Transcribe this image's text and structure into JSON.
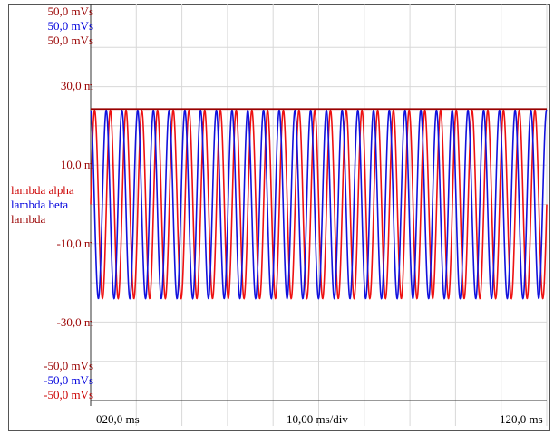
{
  "scale_labels": {
    "top": [
      "50,0 mVs",
      "50,0 mVs",
      "50,0 mVs"
    ],
    "bottom": [
      "-50,0 mVs",
      "-50,0 mVs",
      "-50,0 mVs"
    ]
  },
  "legend": [
    "lambda  alpha",
    "lambda  beta",
    "lambda"
  ],
  "x_labels": {
    "left": "020,0 ms",
    "center": "10,00 ms/div",
    "right": "120,0 ms"
  },
  "colors": {
    "alpha": "#ee1111",
    "beta": "#1111dd",
    "lambda": "#990000",
    "grid": "#d8d8d8"
  },
  "chart_data": {
    "type": "line",
    "title": "",
    "xlabel": "10,00 ms/div",
    "ylabel": "",
    "xlim": [
      20,
      120
    ],
    "ylim": [
      -50,
      50
    ],
    "y_ticks": [
      {
        "value": 30,
        "label": "30,0 m"
      },
      {
        "value": 10,
        "label": "10,0 m"
      },
      {
        "value": -10,
        "label": "-10,0 m"
      },
      {
        "value": -30,
        "label": "-30,0 m"
      }
    ],
    "x_ticks": [
      {
        "value": 20,
        "label": "020,0 ms"
      },
      {
        "value": 120,
        "label": "120,0 ms"
      }
    ],
    "grid": true,
    "series": [
      {
        "name": "lambda  alpha",
        "waveform": "sine",
        "amplitude": 24,
        "offset": 0,
        "cycles": 29,
        "phase_ms": 0
      },
      {
        "name": "lambda  beta",
        "waveform": "sine",
        "amplitude": 24,
        "offset": 0,
        "cycles": 29,
        "phase_ms": -0.9
      },
      {
        "name": "lambda",
        "waveform": "constant",
        "value": 24.3
      }
    ]
  }
}
